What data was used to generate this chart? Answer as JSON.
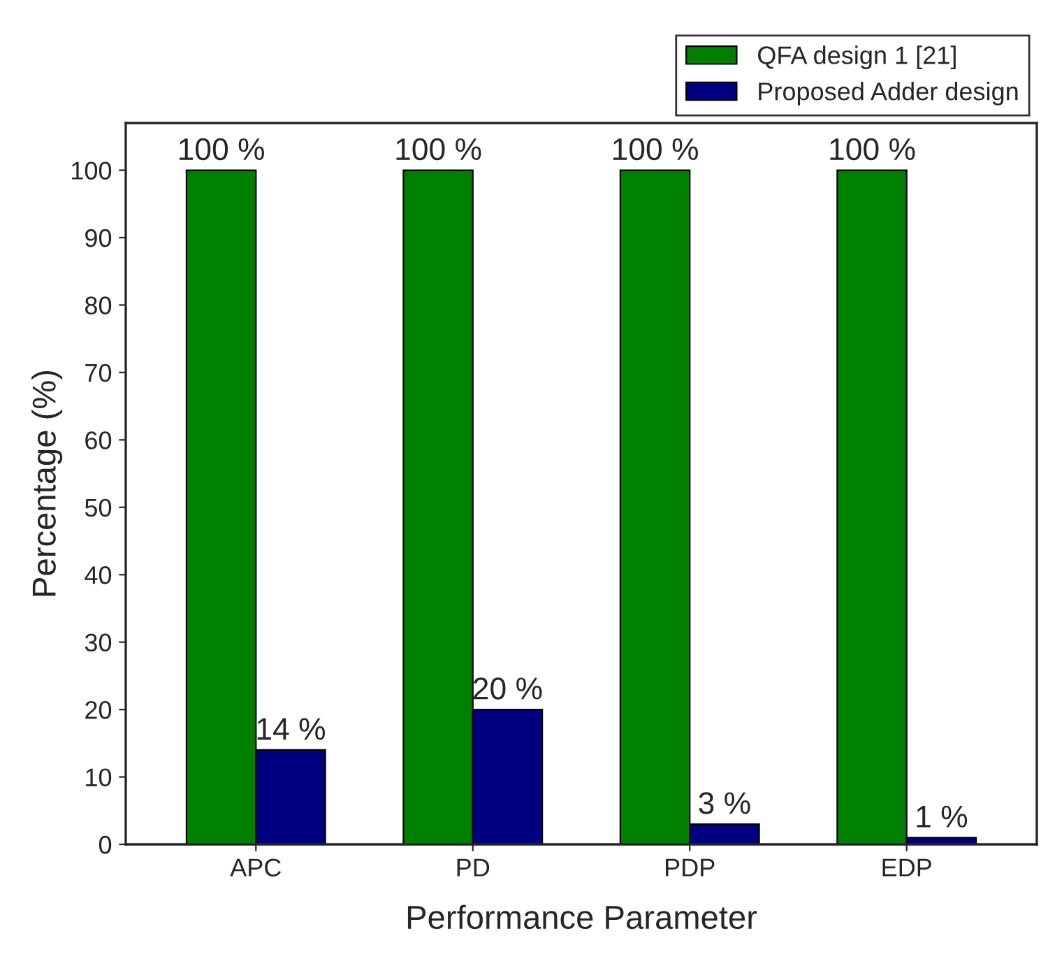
{
  "chart_data": {
    "type": "bar",
    "xlabel": "Performance Parameter",
    "ylabel": "Percentage (%)",
    "categories": [
      "APC",
      "PD",
      "PDP",
      "EDP"
    ],
    "series": [
      {
        "name": "QFA design 1 [21]",
        "color": "#008000",
        "values": [
          100,
          100,
          100,
          100
        ],
        "value_labels": [
          "100 %",
          "100 %",
          "100 %",
          "100 %"
        ]
      },
      {
        "name": "Proposed Adder design",
        "color": "#000080",
        "values": [
          14,
          20,
          3,
          1
        ],
        "value_labels": [
          "14 %",
          "20 %",
          "3 %",
          "1 %"
        ]
      }
    ],
    "ylim": [
      0,
      107
    ],
    "yticks": [
      0,
      10,
      20,
      30,
      40,
      50,
      60,
      70,
      80,
      90,
      100
    ],
    "grid": false,
    "legend": "top right"
  }
}
